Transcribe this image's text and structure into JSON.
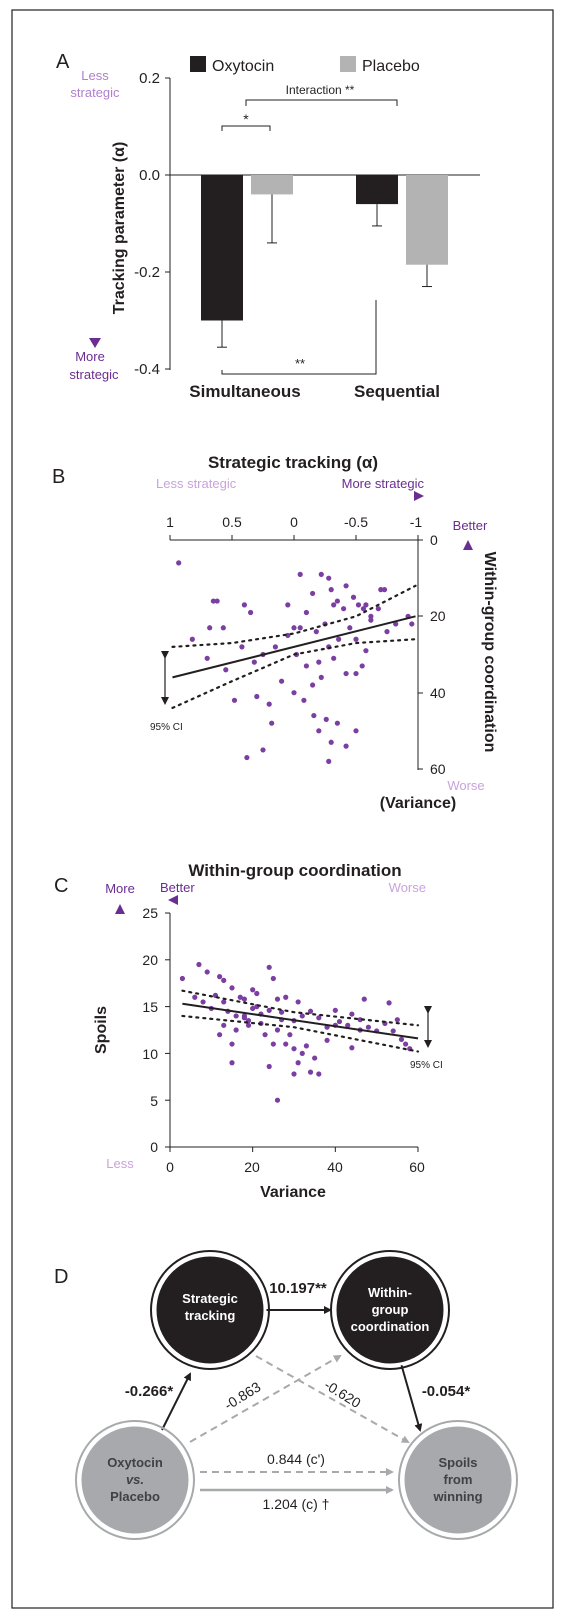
{
  "colors": {
    "oxytocin": "#231f20",
    "placebo": "#b3b3b4",
    "purple": "#7b3ea1",
    "purple_light": "#c9a3dc",
    "node_dark": "#231f20",
    "node_grey": "#a7a9ac",
    "dashed": "#a7a9ac"
  },
  "chart_data": [
    {
      "panel": "A",
      "type": "bar",
      "categories": [
        "Simultaneous",
        "Sequential"
      ],
      "series": [
        {
          "name": "Oxytocin",
          "values": [
            -0.3,
            -0.06
          ],
          "error": [
            0.055,
            0.045
          ]
        },
        {
          "name": "Placebo",
          "values": [
            -0.04,
            -0.185
          ],
          "error": [
            0.1,
            0.045
          ]
        }
      ],
      "ylabel": "Tracking parameter (α)",
      "ylim": [
        -0.4,
        0.2
      ],
      "yticks": [
        "0.2",
        "0.0",
        "-0.2",
        "-0.4"
      ],
      "legend_placement": "top",
      "annotations": {
        "top_arrow": "Less strategic",
        "bottom_arrow": "More strategic",
        "interaction": "Interaction",
        "interaction_sig": "**",
        "simultaneous_sig": "*",
        "oxytocin_sig": "**"
      }
    },
    {
      "panel": "B",
      "type": "scatter",
      "title": "Strategic tracking (α)",
      "xlabel": "Strategic tracking (α)",
      "ylabel": "Within-group coordination",
      "ylabel_sub": "(Variance)",
      "xlim": [
        1,
        -1
      ],
      "ylim": [
        0,
        60
      ],
      "xticks": [
        "1",
        "0.5",
        "0",
        "-0.5",
        "-1"
      ],
      "yticks": [
        "0",
        "20",
        "40",
        "60"
      ],
      "x_arrow_left": "Less strategic",
      "x_arrow_right": "More strategic",
      "y_arrow_top": "Better",
      "y_arrow_bottom": "Worse",
      "ci_label": "95% CI",
      "points": [
        [
          0.93,
          6
        ],
        [
          0.65,
          16
        ],
        [
          0.62,
          16
        ],
        [
          0.68,
          23
        ],
        [
          0.57,
          23
        ],
        [
          0.4,
          17
        ],
        [
          0.35,
          19
        ],
        [
          0.05,
          17
        ],
        [
          0.0,
          23
        ],
        [
          -0.05,
          9
        ],
        [
          -0.15,
          14
        ],
        [
          -0.22,
          9
        ],
        [
          -0.28,
          10
        ],
        [
          -0.3,
          13
        ],
        [
          -0.35,
          16
        ],
        [
          -0.42,
          12
        ],
        [
          -0.48,
          15
        ],
        [
          -0.52,
          17
        ],
        [
          -0.58,
          17
        ],
        [
          -0.7,
          13
        ],
        [
          -0.73,
          13
        ],
        [
          -0.62,
          20
        ],
        [
          -0.56,
          18
        ],
        [
          -0.4,
          18
        ],
        [
          -0.32,
          17
        ],
        [
          -0.25,
          22
        ],
        [
          -0.18,
          24
        ],
        [
          -0.1,
          19
        ],
        [
          -0.05,
          23
        ],
        [
          0.05,
          25
        ],
        [
          0.15,
          28
        ],
        [
          0.25,
          30
        ],
        [
          0.32,
          32
        ],
        [
          0.42,
          28
        ],
        [
          0.55,
          34
        ],
        [
          0.7,
          31
        ],
        [
          0.82,
          26
        ],
        [
          -0.02,
          30
        ],
        [
          -0.1,
          33
        ],
        [
          -0.2,
          32
        ],
        [
          -0.28,
          28
        ],
        [
          -0.36,
          26
        ],
        [
          -0.45,
          23
        ],
        [
          -0.5,
          26
        ],
        [
          -0.58,
          29
        ],
        [
          -0.62,
          21
        ],
        [
          -0.68,
          18
        ],
        [
          -0.82,
          22
        ],
        [
          -0.92,
          20
        ],
        [
          -0.95,
          22
        ],
        [
          -0.75,
          24
        ],
        [
          -0.55,
          33
        ],
        [
          -0.42,
          35
        ],
        [
          -0.32,
          31
        ],
        [
          -0.22,
          36
        ],
        [
          -0.15,
          38
        ],
        [
          0.0,
          40
        ],
        [
          0.1,
          37
        ],
        [
          0.2,
          43
        ],
        [
          0.3,
          41
        ],
        [
          0.48,
          42
        ],
        [
          0.18,
          48
        ],
        [
          0.25,
          55
        ],
        [
          0.38,
          57
        ],
        [
          -0.08,
          42
        ],
        [
          -0.16,
          46
        ],
        [
          -0.2,
          50
        ],
        [
          -0.26,
          47
        ],
        [
          -0.3,
          53
        ],
        [
          -0.35,
          48
        ],
        [
          -0.42,
          54
        ],
        [
          -0.5,
          50
        ],
        [
          -0.5,
          35
        ],
        [
          -0.28,
          58
        ]
      ],
      "fit": {
        "x": [
          0.98,
          -0.98
        ],
        "y": [
          36,
          20
        ]
      },
      "ci_upper": {
        "x": [
          0.98,
          0.5,
          0.0,
          -0.5,
          -0.98
        ],
        "y": [
          28,
          27,
          24.5,
          20,
          12
        ]
      },
      "ci_lower": {
        "x": [
          0.98,
          0.5,
          0.0,
          -0.5,
          -0.98
        ],
        "y": [
          44,
          37,
          30,
          27,
          26
        ]
      }
    },
    {
      "panel": "C",
      "type": "scatter",
      "title": "Within-group coordination",
      "xlabel": "Variance",
      "ylabel": "Spoils",
      "xlim": [
        0,
        60
      ],
      "ylim": [
        0,
        25
      ],
      "xticks": [
        "0",
        "20",
        "40",
        "60"
      ],
      "yticks": [
        "0",
        "5",
        "10",
        "15",
        "20",
        "25"
      ],
      "x_arrow_left": "Better",
      "x_arrow_right": "Worse",
      "y_arrow_top": "More",
      "y_arrow_bottom": "Less",
      "ci_label": "95% CI",
      "points": [
        [
          3,
          18
        ],
        [
          7,
          19.5
        ],
        [
          9,
          18.7
        ],
        [
          12,
          18.2
        ],
        [
          13,
          17.8
        ],
        [
          15,
          17
        ],
        [
          17,
          16
        ],
        [
          18,
          15.8
        ],
        [
          20,
          16.8
        ],
        [
          21,
          16.4
        ],
        [
          24,
          19.2
        ],
        [
          25,
          18
        ],
        [
          6,
          16
        ],
        [
          8,
          15.5
        ],
        [
          10,
          14.8
        ],
        [
          11,
          16.2
        ],
        [
          13,
          15.5
        ],
        [
          14,
          14.5
        ],
        [
          16,
          14
        ],
        [
          18,
          13.8
        ],
        [
          19,
          13.5
        ],
        [
          21,
          15
        ],
        [
          22,
          14.2
        ],
        [
          24,
          14.6
        ],
        [
          26,
          15.8
        ],
        [
          27,
          14.4
        ],
        [
          28,
          16
        ],
        [
          30,
          13.5
        ],
        [
          31,
          15.5
        ],
        [
          32,
          14
        ],
        [
          34,
          14.5
        ],
        [
          36,
          13.8
        ],
        [
          38,
          12.8
        ],
        [
          40,
          14.6
        ],
        [
          41,
          13.4
        ],
        [
          43,
          13
        ],
        [
          44,
          14.2
        ],
        [
          46,
          13.6
        ],
        [
          47,
          15.8
        ],
        [
          48,
          12.8
        ],
        [
          50,
          12.4
        ],
        [
          52,
          13.2
        ],
        [
          53,
          15.4
        ],
        [
          54,
          12.4
        ],
        [
          55,
          13.6
        ],
        [
          56,
          11.5
        ],
        [
          58,
          10.5
        ],
        [
          57,
          11
        ],
        [
          12,
          12
        ],
        [
          13,
          13
        ],
        [
          15,
          11
        ],
        [
          16,
          12.5
        ],
        [
          18,
          14
        ],
        [
          19,
          13
        ],
        [
          20,
          14.8
        ],
        [
          22,
          13.2
        ],
        [
          23,
          12
        ],
        [
          24,
          8.6
        ],
        [
          25,
          11
        ],
        [
          26,
          12.5
        ],
        [
          27,
          13.6
        ],
        [
          28,
          11
        ],
        [
          29,
          12
        ],
        [
          30,
          10.5
        ],
        [
          31,
          9
        ],
        [
          32,
          10
        ],
        [
          33,
          10.8
        ],
        [
          34,
          8
        ],
        [
          35,
          9.5
        ],
        [
          36,
          7.8
        ],
        [
          38,
          11.4
        ],
        [
          30,
          7.8
        ],
        [
          26,
          5
        ],
        [
          15,
          9
        ],
        [
          44,
          10.6
        ],
        [
          46,
          12.5
        ],
        [
          40,
          13
        ]
      ],
      "fit": {
        "x": [
          3,
          60
        ],
        "y": [
          15.3,
          11.6
        ]
      },
      "ci_upper": {
        "x": [
          3,
          30,
          60
        ],
        "y": [
          16.7,
          14.4,
          13.0
        ]
      },
      "ci_lower": {
        "x": [
          3,
          30,
          60
        ],
        "y": [
          14.0,
          12.8,
          10.2
        ]
      }
    }
  ],
  "panels": {
    "a": {
      "label": "A",
      "legend_oxytocin": "Oxytocin",
      "legend_placebo": "Placebo",
      "interaction": "Interaction **",
      "sig_sim": "*",
      "sig_bottom": "**",
      "less": "Less",
      "strategic_top": "strategic",
      "more": "More",
      "strategic_bottom": "strategic",
      "ylabel": "Tracking parameter (α)",
      "cat1": "Simultaneous",
      "cat2": "Sequential",
      "ytick0": "0.2",
      "ytick1": "0.0",
      "ytick2": "-0.2",
      "ytick3": "-0.4"
    },
    "b": {
      "label": "B",
      "title": "Strategic tracking (α)",
      "less_strategic": "Less strategic",
      "more_strategic": "More strategic",
      "xt0": "1",
      "xt1": "0.5",
      "xt2": "0",
      "xt3": "-0.5",
      "xt4": "-1",
      "yt0": "0",
      "yt1": "20",
      "yt2": "40",
      "yt3": "60",
      "better": "Better",
      "worse": "Worse",
      "ylabel": "Within-group coordination",
      "ylabel_sub": "(Variance)",
      "ci": "95% CI"
    },
    "c": {
      "label": "C",
      "title": "Within-group coordination",
      "more": "More",
      "less": "Less",
      "better": "Better",
      "worse": "Worse",
      "ylabel": "Spoils",
      "xlabel": "Variance",
      "xt0": "0",
      "xt1": "20",
      "xt2": "40",
      "xt3": "60",
      "yt0": "0",
      "yt1": "5",
      "yt2": "10",
      "yt3": "15",
      "yt4": "20",
      "yt5": "25",
      "ci": "95% CI"
    },
    "d": {
      "label": "D",
      "node_tracking_1": "Strategic",
      "node_tracking_2": "tracking",
      "node_coord_1": "Within-",
      "node_coord_2": "group",
      "node_coord_3": "coordination",
      "node_oxy_1": "Oxytocin",
      "node_oxy_2": "vs.",
      "node_oxy_3": "Placebo",
      "node_spoils_1": "Spoils",
      "node_spoils_2": "from",
      "node_spoils_3": "winning",
      "path_a": "-0.266*",
      "path_b": "10.197**",
      "path_c": "-0.054*",
      "path_oxy_coord": "-0.863",
      "path_track_spoils": "-0.620",
      "path_direct": "0.844 (c')",
      "path_total": "1.204 (c) †"
    }
  }
}
